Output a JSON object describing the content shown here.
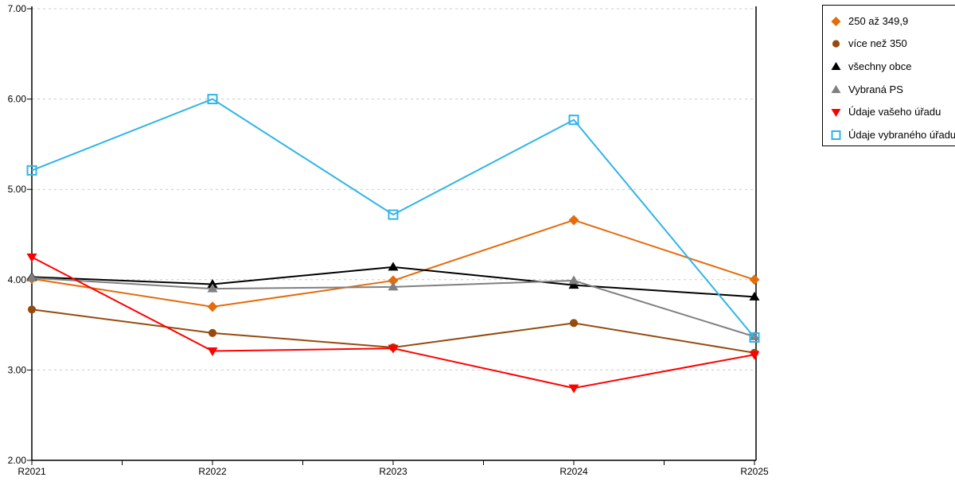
{
  "chart_data": {
    "type": "line",
    "title": "",
    "xlabel": "",
    "ylabel": "",
    "categories": [
      "R2021",
      "R2022",
      "R2023",
      "R2024",
      "R2025"
    ],
    "series": [
      {
        "name": "250 až 349,9",
        "color": "#E46C0A",
        "marker": "diamond",
        "values": [
          4.01,
          3.7,
          3.99,
          4.66,
          4.0
        ]
      },
      {
        "name": "více než 350",
        "color": "#964B0E",
        "marker": "circle",
        "values": [
          3.67,
          3.41,
          3.25,
          3.52,
          3.19
        ]
      },
      {
        "name": "všechny obce",
        "color": "#000000",
        "marker": "triangle-up",
        "values": [
          4.03,
          3.95,
          4.14,
          3.94,
          3.81
        ]
      },
      {
        "name": "Vybraná PS",
        "color": "#808080",
        "marker": "triangle-up",
        "values": [
          4.02,
          3.9,
          3.92,
          3.99,
          3.37
        ]
      },
      {
        "name": "Údaje vašeho úřadu",
        "color": "#FF0000",
        "marker": "triangle-down",
        "values": [
          4.25,
          3.21,
          3.24,
          2.8,
          3.17
        ]
      },
      {
        "name": "Údaje vybraného úřadu",
        "color": "#2FB4E9",
        "marker": "square-open",
        "values": [
          5.21,
          6.0,
          4.72,
          5.77,
          3.36
        ]
      }
    ],
    "ylim": [
      2,
      7
    ],
    "y_ticks": [
      7,
      6,
      5,
      4,
      3,
      2
    ],
    "y_tick_labels": [
      "7.00",
      "6.00",
      "5.00",
      "4.00",
      "3.00",
      "2.00"
    ],
    "grid": "horizontal-dashed",
    "gridline_color": "#C9C9C9",
    "axis_color": "#000000",
    "legend_position": "top-right"
  }
}
